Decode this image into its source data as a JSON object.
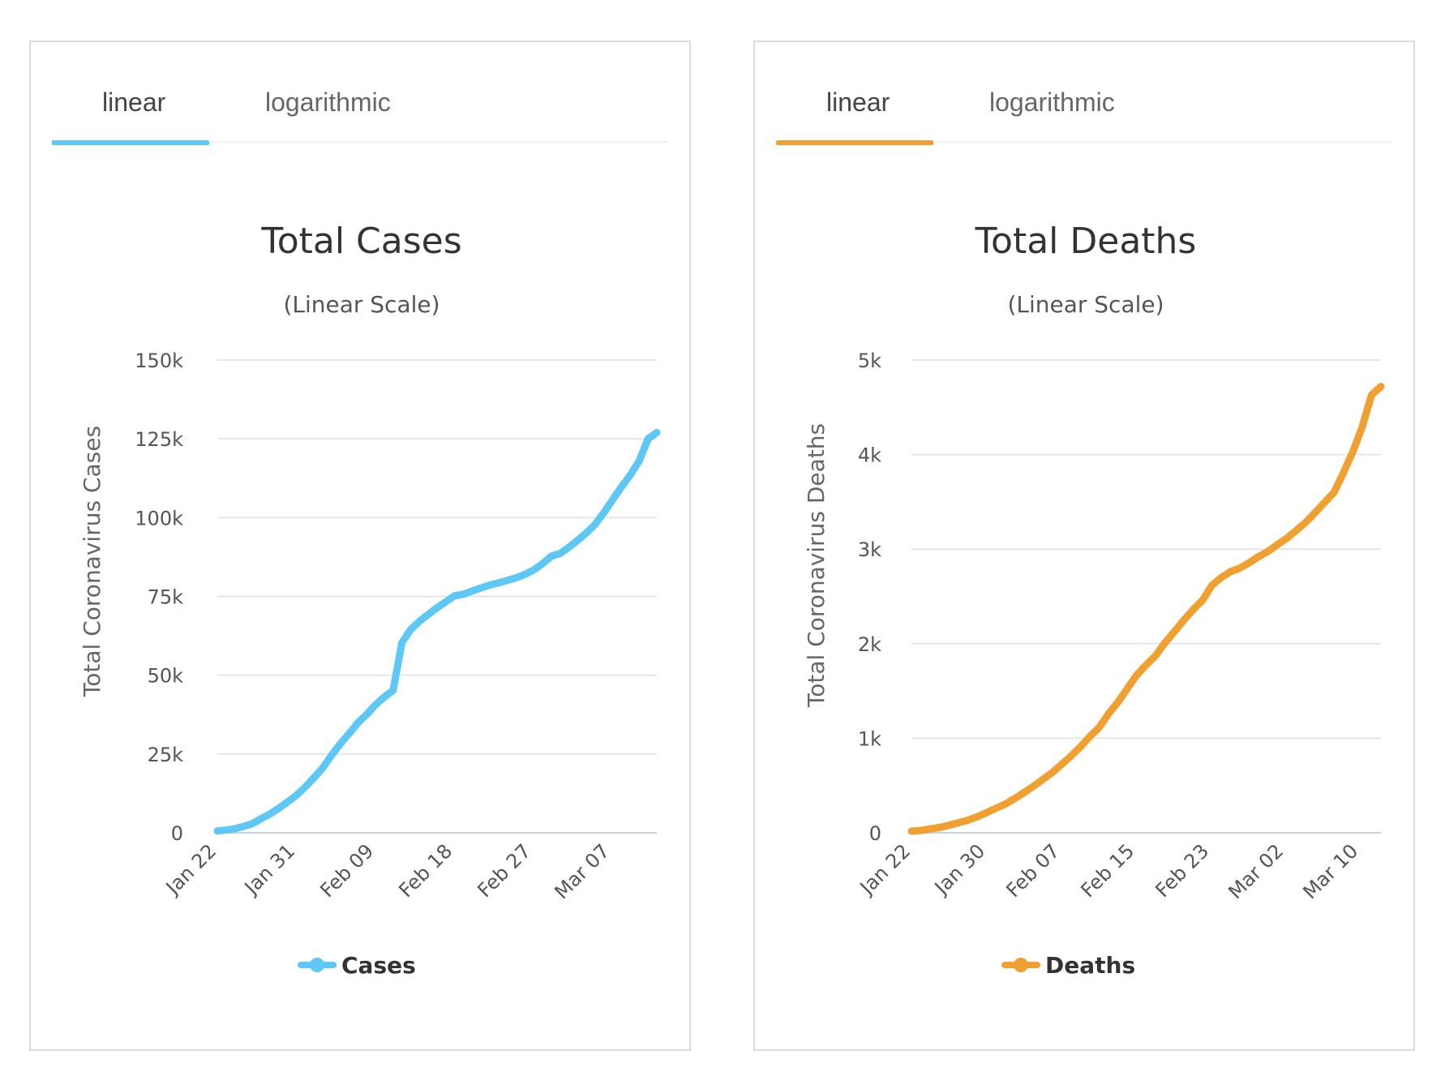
{
  "panels": [
    {
      "tabs": {
        "linear": "linear",
        "logarithmic": "logarithmic",
        "active": "linear"
      },
      "accent": "#5dc7f5"
    },
    {
      "tabs": {
        "linear": "linear",
        "logarithmic": "logarithmic",
        "active": "linear"
      },
      "accent": "#f0a030"
    }
  ],
  "chart_data": [
    {
      "type": "line",
      "title": "Total Cases",
      "subtitle": "(Linear Scale)",
      "ylabel": "Total Coronavirus Cases",
      "xlabel": "",
      "ylim": [
        0,
        150000
      ],
      "y_ticks": [
        0,
        25000,
        50000,
        75000,
        100000,
        125000,
        150000
      ],
      "y_tick_labels": [
        "0",
        "25k",
        "50k",
        "75k",
        "100k",
        "125k",
        "150k"
      ],
      "x_tick_labels": [
        "Jan 22",
        "Jan 31",
        "Feb 09",
        "Feb 18",
        "Feb 27",
        "Mar 07"
      ],
      "grid": true,
      "legend": "bottom",
      "color": "#5dc7f5",
      "series": [
        {
          "name": "Cases",
          "x": [
            "Jan 22",
            "Jan 23",
            "Jan 24",
            "Jan 25",
            "Jan 26",
            "Jan 27",
            "Jan 28",
            "Jan 29",
            "Jan 30",
            "Jan 31",
            "Feb 01",
            "Feb 02",
            "Feb 03",
            "Feb 04",
            "Feb 05",
            "Feb 06",
            "Feb 07",
            "Feb 08",
            "Feb 09",
            "Feb 10",
            "Feb 11",
            "Feb 12",
            "Feb 13",
            "Feb 14",
            "Feb 15",
            "Feb 16",
            "Feb 17",
            "Feb 18",
            "Feb 19",
            "Feb 20",
            "Feb 21",
            "Feb 22",
            "Feb 23",
            "Feb 24",
            "Feb 25",
            "Feb 26",
            "Feb 27",
            "Feb 28",
            "Feb 29",
            "Mar 01",
            "Mar 02",
            "Mar 03",
            "Mar 04",
            "Mar 05",
            "Mar 06",
            "Mar 07",
            "Mar 08",
            "Mar 09",
            "Mar 10",
            "Mar 11",
            "Mar 12"
          ],
          "values": [
            580,
            850,
            1300,
            2000,
            2900,
            4500,
            6000,
            7800,
            9800,
            11900,
            14500,
            17500,
            20600,
            24600,
            28300,
            31500,
            34900,
            37600,
            40600,
            43100,
            45200,
            60300,
            64500,
            67100,
            69300,
            71400,
            73300,
            75200,
            75700,
            76700,
            77700,
            78600,
            79300,
            80100,
            80900,
            82000,
            83400,
            85400,
            87800,
            88600,
            90600,
            92800,
            95200,
            97900,
            101700,
            105800,
            109800,
            113600,
            118000,
            125000,
            127000
          ]
        }
      ]
    },
    {
      "type": "line",
      "title": "Total Deaths",
      "subtitle": "(Linear Scale)",
      "ylabel": "Total Coronavirus Deaths",
      "xlabel": "",
      "ylim": [
        0,
        5000
      ],
      "y_ticks": [
        0,
        1000,
        2000,
        3000,
        4000,
        5000
      ],
      "y_tick_labels": [
        "0",
        "1k",
        "2k",
        "3k",
        "4k",
        "5k"
      ],
      "x_tick_labels": [
        "Jan 22",
        "Jan 30",
        "Feb 07",
        "Feb 15",
        "Feb 23",
        "Mar 02",
        "Mar 10"
      ],
      "grid": true,
      "legend": "bottom",
      "color": "#f0a030",
      "series": [
        {
          "name": "Deaths",
          "x": [
            "Jan 22",
            "Jan 23",
            "Jan 24",
            "Jan 25",
            "Jan 26",
            "Jan 27",
            "Jan 28",
            "Jan 29",
            "Jan 30",
            "Jan 31",
            "Feb 01",
            "Feb 02",
            "Feb 03",
            "Feb 04",
            "Feb 05",
            "Feb 06",
            "Feb 07",
            "Feb 08",
            "Feb 09",
            "Feb 10",
            "Feb 11",
            "Feb 12",
            "Feb 13",
            "Feb 14",
            "Feb 15",
            "Feb 16",
            "Feb 17",
            "Feb 18",
            "Feb 19",
            "Feb 20",
            "Feb 21",
            "Feb 22",
            "Feb 23",
            "Feb 24",
            "Feb 25",
            "Feb 26",
            "Feb 27",
            "Feb 28",
            "Feb 29",
            "Mar 01",
            "Mar 02",
            "Mar 03",
            "Mar 04",
            "Mar 05",
            "Mar 06",
            "Mar 07",
            "Mar 08",
            "Mar 09",
            "Mar 10",
            "Mar 11",
            "Mar 12"
          ],
          "values": [
            17,
            25,
            41,
            56,
            80,
            106,
            132,
            170,
            213,
            259,
            304,
            362,
            426,
            492,
            565,
            638,
            724,
            813,
            910,
            1018,
            1115,
            1261,
            1383,
            1526,
            1669,
            1775,
            1873,
            2009,
            2126,
            2247,
            2360,
            2460,
            2618,
            2699,
            2763,
            2800,
            2858,
            2923,
            2977,
            3050,
            3117,
            3200,
            3285,
            3387,
            3494,
            3600,
            3806,
            4030,
            4290,
            4630,
            4720
          ]
        }
      ]
    }
  ]
}
